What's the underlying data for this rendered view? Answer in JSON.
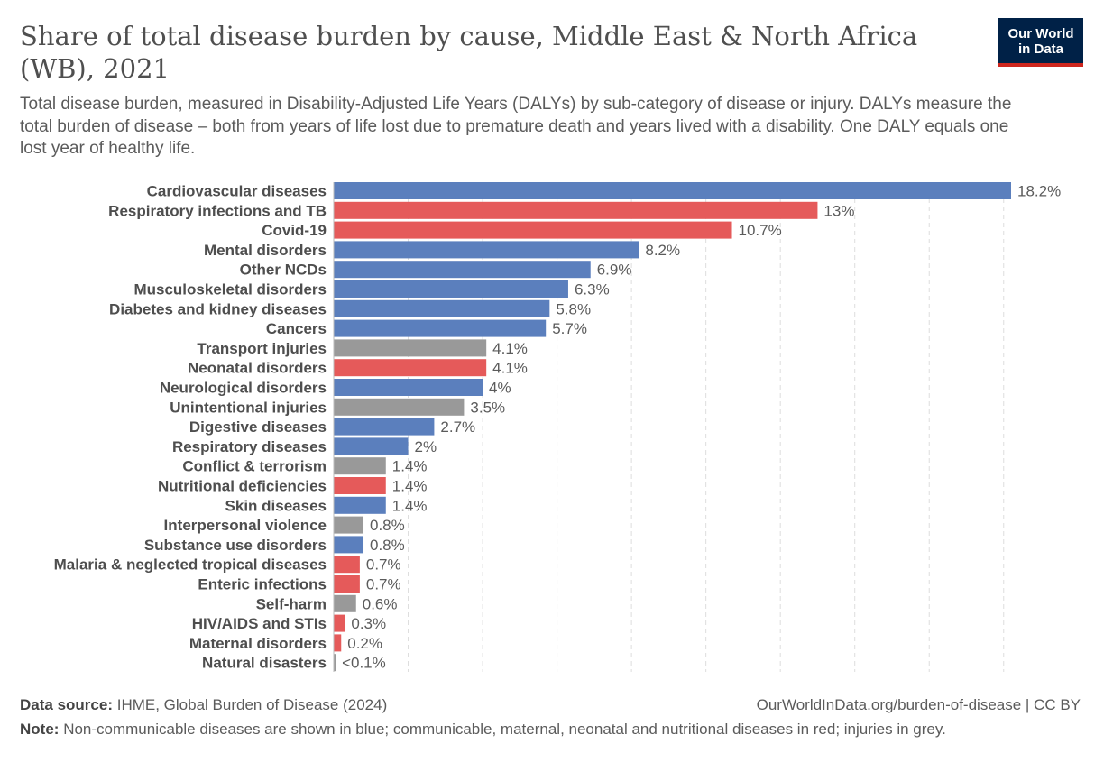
{
  "title": "Share of total disease burden by cause, Middle East & North Africa (WB), 2021",
  "subtitle": "Total disease burden, measured in Disability-Adjusted Life Years (DALYs) by sub-category of disease or injury. DALYs measure the total burden of disease – both from years of life lost due to premature death and years lived with a disability. One DALY equals one lost year of healthy life.",
  "logo": {
    "line1": "Our World",
    "line2": "in Data"
  },
  "footer": {
    "source_label": "Data source:",
    "source_text": "IHME, Global Burden of Disease (2024)",
    "url": "OurWorldInData.org/burden-of-disease | CC BY",
    "note_label": "Note:",
    "note_text": "Non-communicable diseases are shown in blue; communicable, maternal, neonatal and nutritional diseases in red; injuries in grey."
  },
  "colors": {
    "ncd": "#5b7fbd",
    "communicable": "#e55a5a",
    "injury": "#999999"
  },
  "chart_data": {
    "type": "bar",
    "orientation": "horizontal",
    "grid": true,
    "unit": "%",
    "xlim": [
      0,
      18.2
    ],
    "categories": [
      "Cardiovascular diseases",
      "Respiratory infections and TB",
      "Covid-19",
      "Mental disorders",
      "Other NCDs",
      "Musculoskeletal disorders",
      "Diabetes and kidney diseases",
      "Cancers",
      "Transport injuries",
      "Neonatal disorders",
      "Neurological disorders",
      "Unintentional injuries",
      "Digestive diseases",
      "Respiratory diseases",
      "Conflict & terrorism",
      "Nutritional deficiencies",
      "Skin diseases",
      "Interpersonal violence",
      "Substance use disorders",
      "Malaria & neglected tropical diseases",
      "Enteric infections",
      "Self-harm",
      "HIV/AIDS and STIs",
      "Maternal disorders",
      "Natural disasters"
    ],
    "values": [
      18.2,
      13,
      10.7,
      8.2,
      6.9,
      6.3,
      5.8,
      5.7,
      4.1,
      4.1,
      4,
      3.5,
      2.7,
      2,
      1.4,
      1.4,
      1.4,
      0.8,
      0.8,
      0.7,
      0.7,
      0.6,
      0.3,
      0.2,
      0.05
    ],
    "labels": [
      "18.2%",
      "13%",
      "10.7%",
      "8.2%",
      "6.9%",
      "6.3%",
      "5.8%",
      "5.7%",
      "4.1%",
      "4.1%",
      "4%",
      "3.5%",
      "2.7%",
      "2%",
      "1.4%",
      "1.4%",
      "1.4%",
      "0.8%",
      "0.8%",
      "0.7%",
      "0.7%",
      "0.6%",
      "0.3%",
      "0.2%",
      "<0.1%"
    ],
    "groups": [
      "ncd",
      "communicable",
      "communicable",
      "ncd",
      "ncd",
      "ncd",
      "ncd",
      "ncd",
      "injury",
      "communicable",
      "ncd",
      "injury",
      "ncd",
      "ncd",
      "injury",
      "communicable",
      "ncd",
      "injury",
      "ncd",
      "communicable",
      "communicable",
      "injury",
      "communicable",
      "communicable",
      "injury"
    ]
  }
}
